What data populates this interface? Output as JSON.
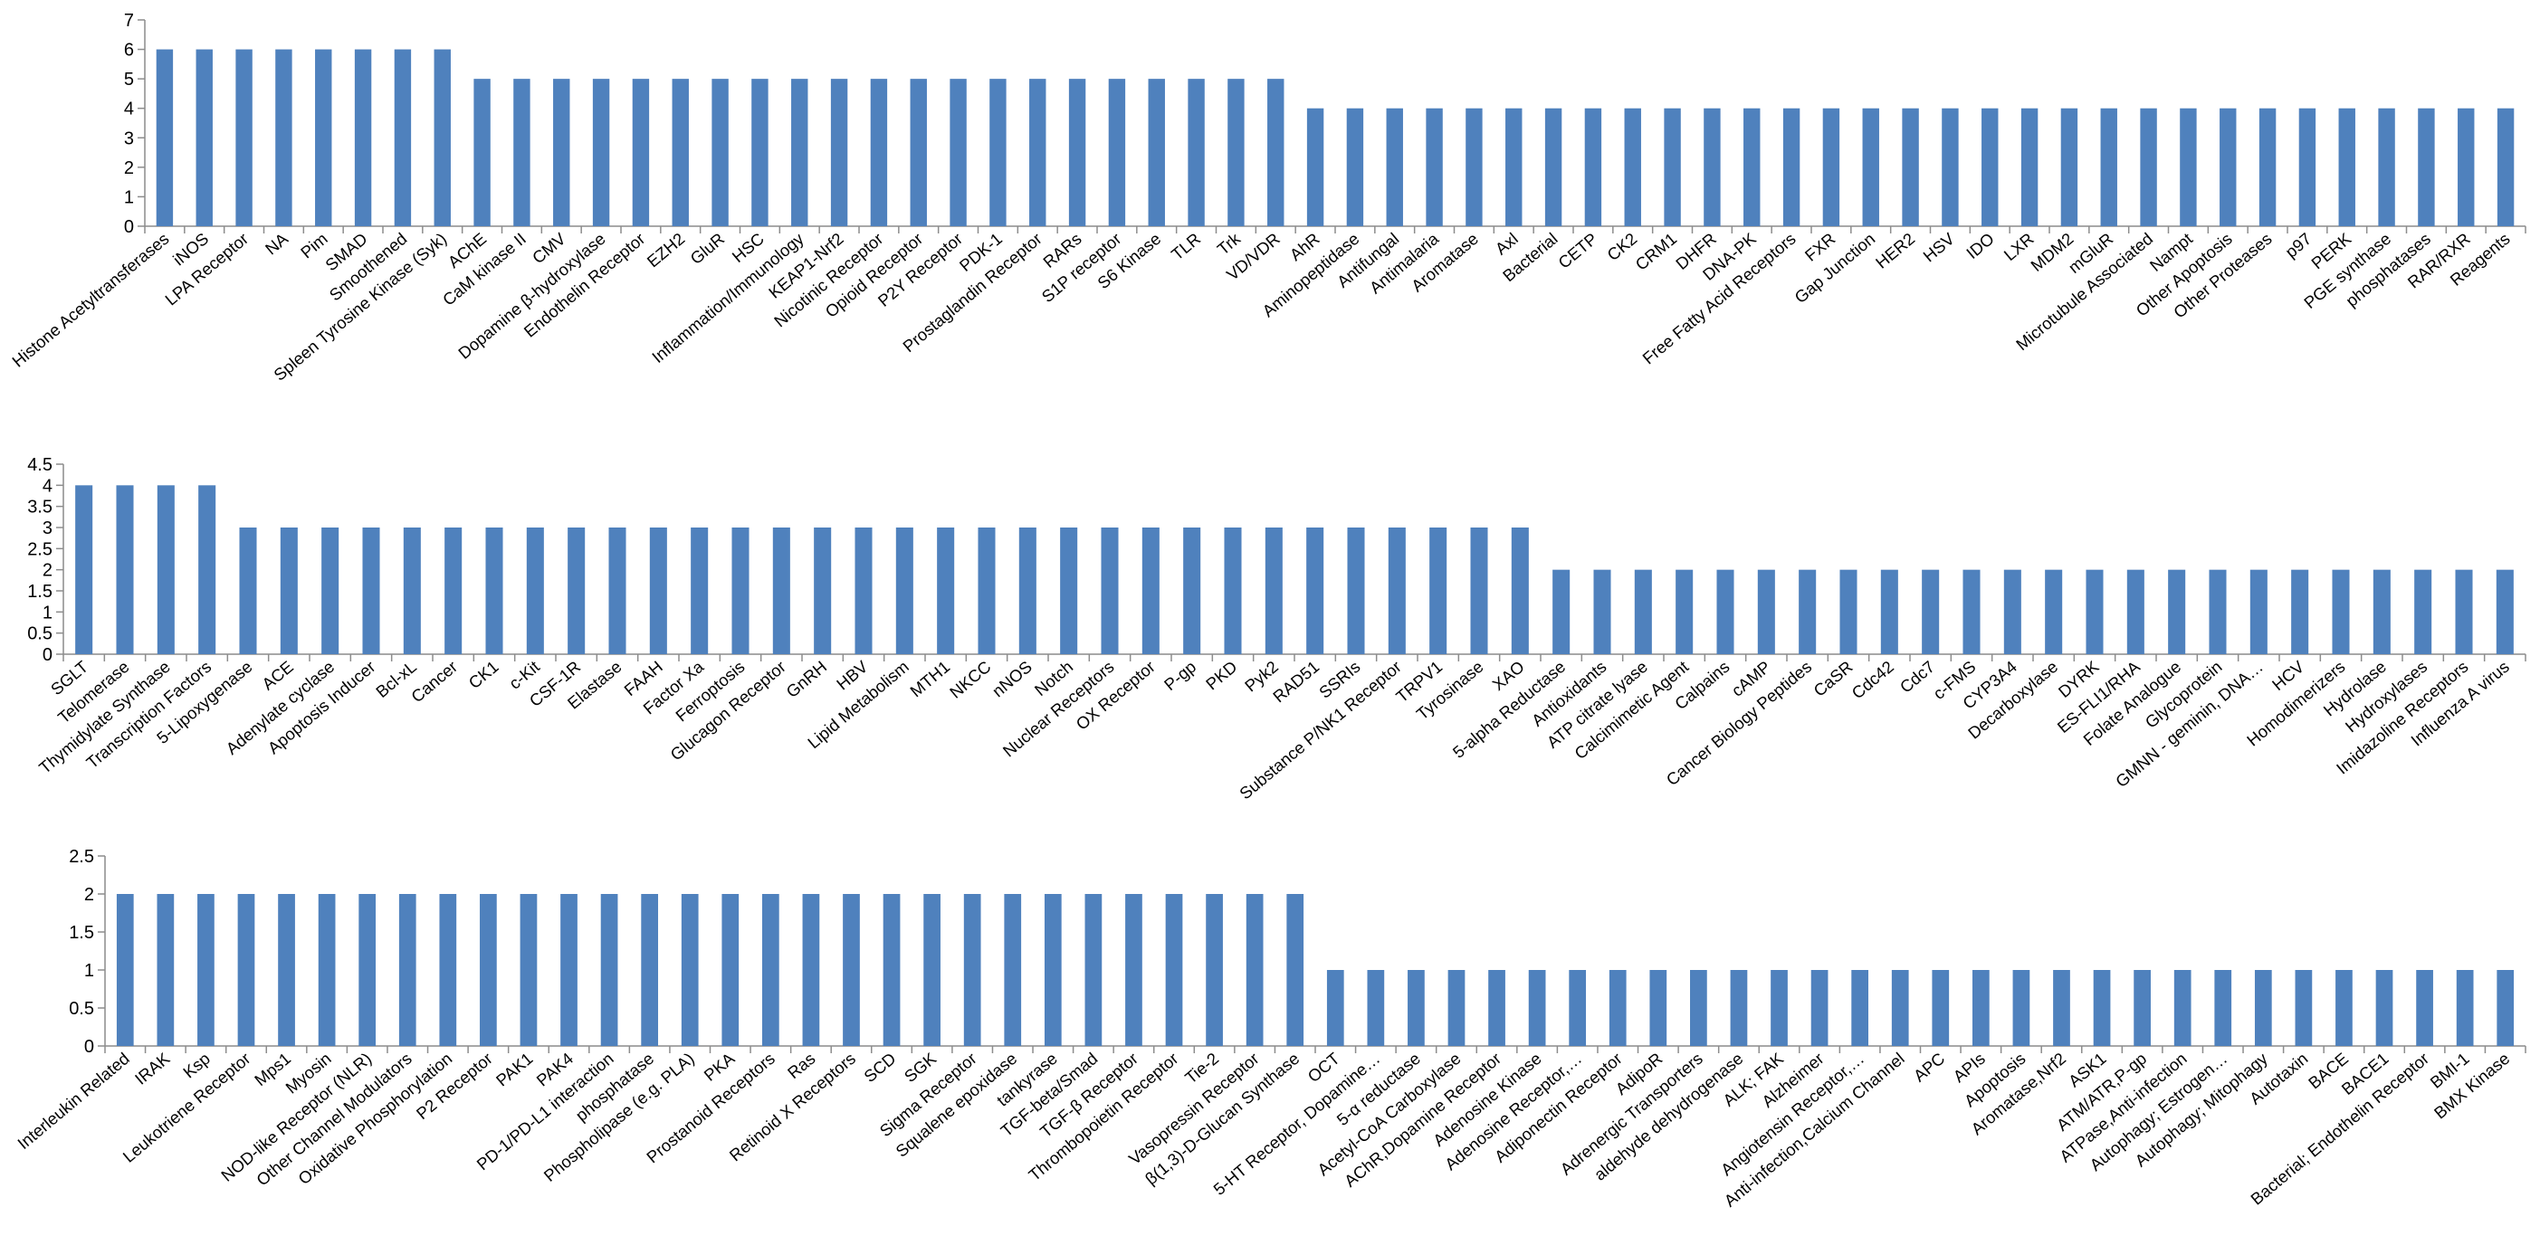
{
  "colors": {
    "bar": "#4f81bd",
    "axis": "#8c8c8c",
    "background": "#ffffff"
  },
  "chart_data": [
    {
      "type": "bar",
      "ylim": [
        0,
        7
      ],
      "yticks": [
        "0",
        "1",
        "2",
        "3",
        "4",
        "5",
        "6",
        "7"
      ],
      "grid": false,
      "legend": "none",
      "categories": [
        "Histone Acetyltransferases",
        "iNOS",
        "LPA Receptor",
        "NA",
        "Pim",
        "SMAD",
        "Smoothened",
        "Spleen Tyrosine Kinase (Syk)",
        "AChE",
        "CaM kinase II",
        "CMV",
        "Dopamine β-hydroxylase",
        "Endothelin Receptor",
        "EZH2",
        "GluR",
        "HSC",
        "Inflammation/Immunology",
        "KEAP1-Nrf2",
        "Nicotinic Receptor",
        "Opioid Receptor",
        "P2Y Receptor",
        "PDK-1",
        "Prostaglandin Receptor",
        "RARs",
        "S1P receptor",
        "S6 Kinase",
        "TLR",
        "Trk",
        "VD/VDR",
        "AhR",
        "Aminopeptidase",
        "Antifungal",
        "Antimalaria",
        "Aromatase",
        "Axl",
        "Bacterial",
        "CETP",
        "CK2",
        "CRM1",
        "DHFR",
        "DNA-PK",
        "Free Fatty Acid Receptors",
        "FXR",
        "Gap Junction",
        "HER2",
        "HSV",
        "IDO",
        "LXR",
        "MDM2",
        "mGluR",
        "Microtubule Associated",
        "Nampt",
        "Other Apoptosis",
        "Other Proteases",
        "p97",
        "PERK",
        "PGE synthase",
        "phosphatases",
        "RAR/RXR",
        "Reagents"
      ],
      "values": [
        6,
        6,
        6,
        6,
        6,
        6,
        6,
        6,
        5,
        5,
        5,
        5,
        5,
        5,
        5,
        5,
        5,
        5,
        5,
        5,
        5,
        5,
        5,
        5,
        5,
        5,
        5,
        5,
        5,
        4,
        4,
        4,
        4,
        4,
        4,
        4,
        4,
        4,
        4,
        4,
        4,
        4,
        4,
        4,
        4,
        4,
        4,
        4,
        4,
        4,
        4,
        4,
        4,
        4,
        4,
        4,
        4,
        4,
        4,
        4
      ]
    },
    {
      "type": "bar",
      "ylim": [
        0,
        4.5
      ],
      "yticks": [
        "0",
        "0.5",
        "1",
        "1.5",
        "2",
        "2.5",
        "3",
        "3.5",
        "4",
        "4.5"
      ],
      "grid": false,
      "legend": "none",
      "categories": [
        "SGLT",
        "Telomerase",
        "Thymidylate Synthase",
        "Transcription Factors",
        "5-Lipoxygenase",
        "ACE",
        "Adenylate cyclase",
        "Apoptosis Inducer",
        "Bcl-xL",
        "Cancer",
        "CK1",
        "c-Kit",
        "CSF-1R",
        "Elastase",
        "FAAH",
        "Factor Xa",
        "Ferroptosis",
        "Glucagon Receptor",
        "GnRH",
        "HBV",
        "Lipid Metabolism",
        "MTH1",
        "NKCC",
        "nNOS",
        "Notch",
        "Nuclear Receptors",
        "OX Receptor",
        "P-gp",
        "PKD",
        "Pyk2",
        "RAD51",
        "SSRIs",
        "Substance P/NK1 Receptor",
        "TRPV1",
        "Tyrosinase",
        "XAO",
        "5-alpha Reductase",
        "Antioxidants",
        "ATP citrate lyase",
        "Calcimimetic Agent",
        "Calpains",
        "cAMP",
        "Cancer Biology Peptides",
        "CaSR",
        "Cdc42",
        "Cdc7",
        "c-FMS",
        "CYP3A4",
        "Decarboxylase",
        "DYRK",
        "ES-FLI1/RHA",
        "Folate Analogue",
        "Glycoprotein",
        "GMNN - geminin, DNA…",
        "HCV",
        "Homodimerizers",
        "Hydrolase",
        "Hydroxylases",
        "Imidazoline Receptors",
        "Influenza A virus"
      ],
      "values": [
        4,
        4,
        4,
        4,
        3,
        3,
        3,
        3,
        3,
        3,
        3,
        3,
        3,
        3,
        3,
        3,
        3,
        3,
        3,
        3,
        3,
        3,
        3,
        3,
        3,
        3,
        3,
        3,
        3,
        3,
        3,
        3,
        3,
        3,
        3,
        3,
        2,
        2,
        2,
        2,
        2,
        2,
        2,
        2,
        2,
        2,
        2,
        2,
        2,
        2,
        2,
        2,
        2,
        2,
        2,
        2,
        2,
        2,
        2,
        2
      ]
    },
    {
      "type": "bar",
      "ylim": [
        0,
        2.5
      ],
      "yticks": [
        "0",
        "0.5",
        "1",
        "1.5",
        "2",
        "2.5"
      ],
      "grid": false,
      "legend": "none",
      "categories": [
        "Interleukin Related",
        "IRAK",
        "Ksp",
        "Leukotriene Receptor",
        "Mps1",
        "Myosin",
        "NOD-like Receptor (NLR)",
        "Other Channel Modulators",
        "Oxidative Phosphorylation",
        "P2 Receptor",
        "PAK1",
        "PAK4",
        "PD-1/PD-L1 interaction",
        "phosphatase",
        "Phospholipase (e.g. PLA)",
        "PKA",
        "Prostanoid Receptors",
        "Ras",
        "Retinoid X Receptors",
        "SCD",
        "SGK",
        "Sigma Receptor",
        "Squalene epoxidase",
        "tankyrase",
        "TGF-beta/Smad",
        "TGF-β Receptor",
        "Thrombopoietin Receptor",
        "Tie-2",
        "Vasopressin Receptor",
        "β(1,3)-D-Glucan Synthase",
        "OCT",
        "5-HT Receptor, Dopamine…",
        "5-α reductase",
        "Acetyl-CoA Carboxylase",
        "AChR,Dopamine Receptor",
        "Adenosine Kinase",
        "Adenosine Receptor,…",
        "Adiponectin Receptor",
        "AdipoR",
        "Adrenergic Transporters",
        "aldehyde dehydrogenase",
        "ALK; FAK",
        "Alzheimer",
        "Angiotensin Receptor,…",
        "Anti-infection,Calcium Channel",
        "APC",
        "APIs",
        "Apoptosis",
        "Aromatase,Nrf2",
        "ASK1",
        "ATM/ATR,P-gp",
        "ATPase,Anti-infection",
        "Autophagy; Estrogen…",
        "Autophagy; Mitophagy",
        "Autotaxin",
        "BACE",
        "BACE1",
        "Bacterial; Endothelin Receptor",
        "BMI-1",
        "BMX Kinase"
      ],
      "values": [
        2,
        2,
        2,
        2,
        2,
        2,
        2,
        2,
        2,
        2,
        2,
        2,
        2,
        2,
        2,
        2,
        2,
        2,
        2,
        2,
        2,
        2,
        2,
        2,
        2,
        2,
        2,
        2,
        2,
        2,
        1,
        1,
        1,
        1,
        1,
        1,
        1,
        1,
        1,
        1,
        1,
        1,
        1,
        1,
        1,
        1,
        1,
        1,
        1,
        1,
        1,
        1,
        1,
        1,
        1,
        1,
        1,
        1,
        1,
        1
      ]
    }
  ]
}
